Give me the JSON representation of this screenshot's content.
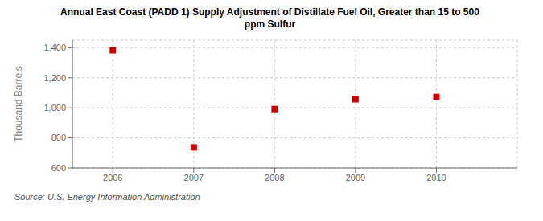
{
  "chart_data": {
    "type": "scatter",
    "title": "Annual East Coast (PADD 1) Supply Adjustment of Distillate Fuel Oil, Greater than 15 to 500\nppm Sulfur",
    "ylabel": "Thousand Barrels",
    "annotation": "Source: U.S. Energy Information Administration",
    "x": [
      2006,
      2007,
      2008,
      2009,
      2010
    ],
    "values": [
      1383,
      737,
      992,
      1057,
      1072
    ],
    "color": "#cc0000",
    "marker": "square",
    "xlim": [
      2005.5,
      2011.0
    ],
    "ylim": [
      600,
      1450
    ],
    "xticks": [
      2006,
      2007,
      2008,
      2009,
      2010
    ],
    "yticks": [
      600,
      800,
      {
        "value": 1000,
        "label": "1,000"
      },
      {
        "value": 1200,
        "label": "1,200"
      },
      {
        "value": 1400,
        "label": "1,400"
      }
    ],
    "grid": true
  }
}
